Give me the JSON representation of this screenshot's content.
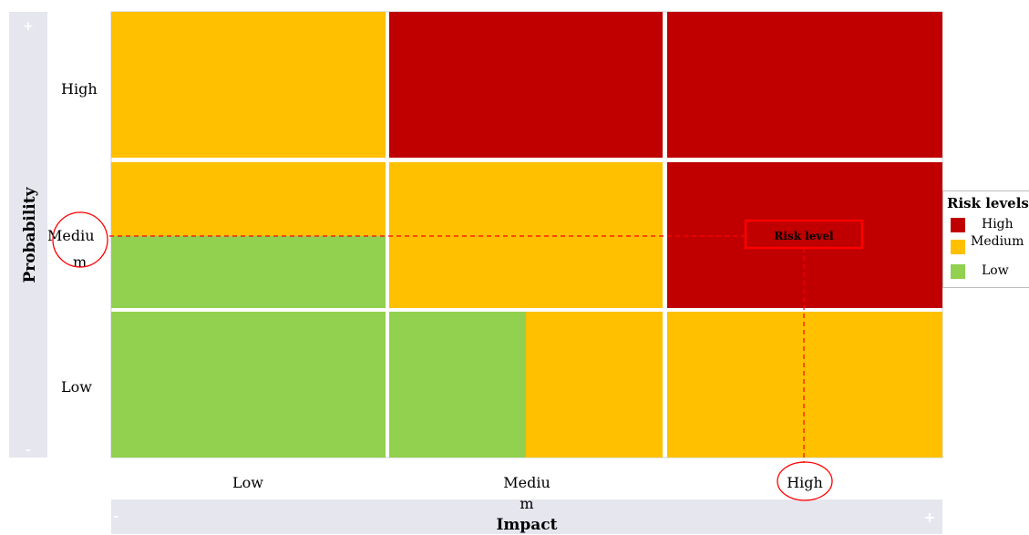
{
  "colors": {
    "high": "#c00000",
    "medium": "#ffc000",
    "low": "#92d050",
    "axis_band": "#e6e6ef",
    "annotation": "#ff0000"
  },
  "chart_data": {
    "type": "heatmap",
    "x_axis": {
      "label": "Impact",
      "categories": [
        "Low",
        "Medium",
        "High"
      ],
      "min_marker": "-",
      "max_marker": "+"
    },
    "y_axis": {
      "label": "Probability",
      "categories": [
        "Low",
        "Medium",
        "High"
      ],
      "min_marker": "-",
      "max_marker": "+"
    },
    "cells": [
      {
        "impact": "Low",
        "probability": "High",
        "level": "medium"
      },
      {
        "impact": "Medium",
        "probability": "High",
        "level": "high"
      },
      {
        "impact": "High",
        "probability": "High",
        "level": "high"
      },
      {
        "impact": "Low",
        "probability": "Medium",
        "level": "medium",
        "lower_half_level": "low"
      },
      {
        "impact": "Medium",
        "probability": "Medium",
        "level": "medium"
      },
      {
        "impact": "High",
        "probability": "Medium",
        "level": "high"
      },
      {
        "impact": "Low",
        "probability": "Low",
        "level": "low"
      },
      {
        "impact": "Medium",
        "probability": "Low",
        "level": "medium",
        "left_half_level": "low"
      },
      {
        "impact": "High",
        "probability": "Low",
        "level": "medium"
      }
    ],
    "annotation": {
      "label": "Risk level",
      "impact": "High",
      "probability": "Medium"
    },
    "legend": {
      "title": "Risk levels",
      "position": "right",
      "items": [
        {
          "label": "High",
          "level": "high"
        },
        {
          "label": "Medium",
          "level": "medium"
        },
        {
          "label": "Low",
          "level": "low"
        }
      ]
    }
  }
}
